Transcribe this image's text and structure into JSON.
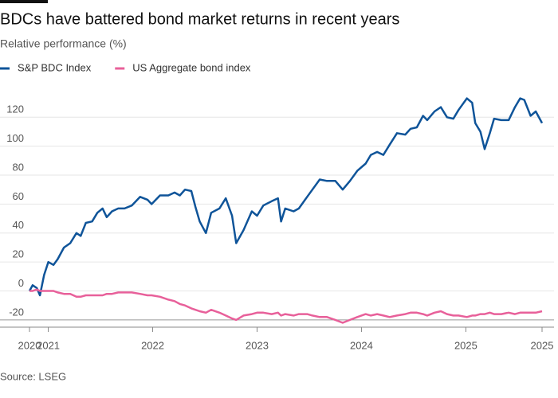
{
  "chart_data": {
    "type": "line",
    "title": "BDCs have battered bond market returns in recent years",
    "subtitle": "Relative performance (%)",
    "source": "Source: LSEG",
    "legend": "top-left",
    "grid": true,
    "x": [
      2020.82,
      2020.85,
      2020.89,
      2020.92,
      2020.96,
      2021.0,
      2021.05,
      2021.09,
      2021.15,
      2021.21,
      2021.27,
      2021.31,
      2021.36,
      2021.42,
      2021.47,
      2021.52,
      2021.56,
      2021.61,
      2021.67,
      2021.73,
      2021.8,
      2021.88,
      2021.95,
      2021.99,
      2022.07,
      2022.15,
      2022.21,
      2022.26,
      2022.31,
      2022.37,
      2022.41,
      2022.45,
      2022.51,
      2022.56,
      2022.64,
      2022.7,
      2022.76,
      2022.8,
      2022.87,
      2022.95,
      2023.0,
      2023.06,
      2023.14,
      2023.2,
      2023.23,
      2023.27,
      2023.35,
      2023.4,
      2023.48,
      2023.53,
      2023.6,
      2023.67,
      2023.75,
      2023.82,
      2023.89,
      2023.96,
      2024.04,
      2024.09,
      2024.15,
      2024.21,
      2024.27,
      2024.34,
      2024.42,
      2024.47,
      2024.53,
      2024.59,
      2024.63,
      2024.7,
      2024.76,
      2024.82,
      2024.88,
      2024.93,
      2025.01,
      2025.06,
      2025.09,
      2025.14,
      2025.18,
      2025.23,
      2025.27,
      2025.34,
      2025.41,
      2025.47,
      2025.52,
      2025.56,
      2025.62,
      2025.67,
      2025.73
    ],
    "series": [
      {
        "name": "S&P BDC Index",
        "color": "#0f5499",
        "values": [
          0,
          4,
          2,
          -3,
          11,
          20,
          18,
          22,
          30,
          33,
          40,
          38,
          47,
          48,
          54,
          57,
          51,
          55,
          57,
          57,
          59,
          65,
          63,
          60,
          66,
          66,
          68,
          66,
          70,
          69,
          58,
          48,
          40,
          54,
          57,
          64,
          52,
          33,
          42,
          55,
          52,
          59,
          62,
          64,
          48,
          57,
          55,
          57,
          65,
          70,
          77,
          76,
          76,
          70,
          76,
          83,
          88,
          94,
          96,
          94,
          101,
          109,
          108,
          112,
          113,
          121,
          118,
          124,
          127,
          120,
          119,
          125,
          133,
          130,
          116,
          110,
          98,
          109,
          119,
          118,
          118,
          127,
          133,
          132,
          121,
          124,
          116
        ]
      },
      {
        "name": "US Aggregate bond index",
        "color": "#e8609a",
        "values": [
          0,
          0,
          1,
          0,
          0,
          0,
          0,
          -1,
          -2,
          -2,
          -4,
          -4,
          -3,
          -3,
          -3,
          -3,
          -2,
          -2,
          -1,
          -1,
          -1,
          -2,
          -3,
          -3,
          -4,
          -6,
          -7,
          -9,
          -10,
          -12,
          -13,
          -14,
          -15,
          -13,
          -15,
          -17,
          -19,
          -20,
          -17,
          -16,
          -15,
          -15,
          -16,
          -15,
          -17,
          -16,
          -17,
          -16,
          -16,
          -17,
          -18,
          -18,
          -20,
          -22,
          -20,
          -18,
          -16,
          -17,
          -16,
          -17,
          -18,
          -17,
          -16,
          -15,
          -15,
          -16,
          -17,
          -15,
          -14,
          -16,
          -17,
          -17,
          -18,
          -17,
          -17,
          -16,
          -16,
          -15,
          -16,
          -16,
          -15,
          -16,
          -15,
          -15,
          -15,
          -15,
          -14
        ]
      }
    ],
    "xlim": [
      2020.82,
      2025.73
    ],
    "xticks": [
      {
        "value": 2020.82,
        "label": "2020"
      },
      2021,
      2022,
      2023,
      2024,
      2025,
      {
        "value": 2025.73,
        "label": "2025"
      }
    ],
    "ylim": [
      -25,
      135
    ],
    "yticks": [
      -20,
      0,
      20,
      40,
      60,
      80,
      100,
      120
    ]
  }
}
